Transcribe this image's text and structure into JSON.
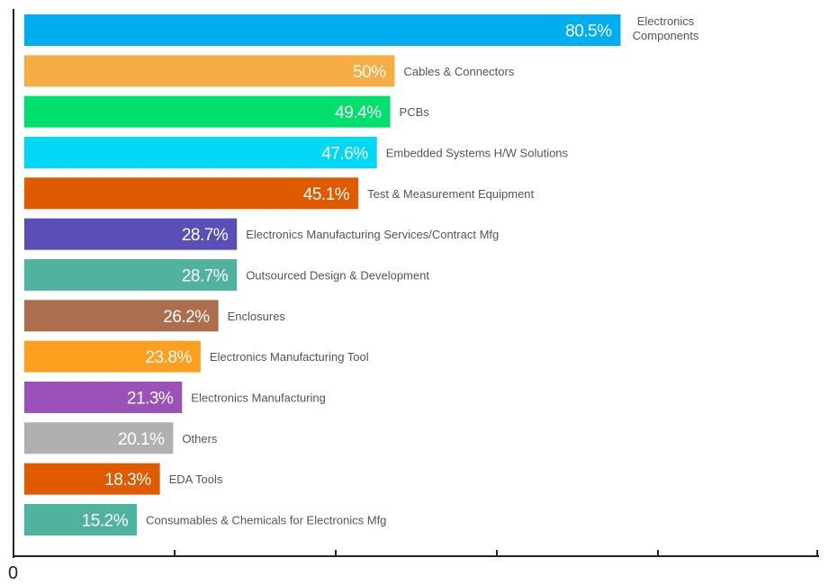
{
  "chart_data": {
    "type": "bar",
    "orientation": "horizontal",
    "categories": [
      "Electronics Components",
      "Cables & Connectors",
      "PCBs",
      "Embedded Systems H/W Solutions",
      "Test & Measurement Equipment",
      "Electronics Manufacturing Services/Contract Mfg",
      "Outsourced Design & Development",
      "Enclosures",
      "Electronics Manufacturing Tool",
      "Electronics Manufacturing",
      "Others",
      "EDA Tools",
      "Consumables & Chemicals for Electronics Mfg"
    ],
    "category_lines": [
      [
        "Electronics",
        "Components"
      ],
      [
        "Cables & Connectors"
      ],
      [
        "PCBs"
      ],
      [
        "Embedded Systems H/W Solutions"
      ],
      [
        "Test & Measurement Equipment"
      ],
      [
        "Electronics Manufacturing Services/Contract Mfg"
      ],
      [
        "Outsourced Design & Development"
      ],
      [
        "Enclosures"
      ],
      [
        "Electronics Manufacturing Tool"
      ],
      [
        "Electronics Manufacturing"
      ],
      [
        "Others"
      ],
      [
        "EDA Tools"
      ],
      [
        "Consumables & Chemicals for Electronics Mfg"
      ]
    ],
    "values": [
      80.5,
      50,
      49.4,
      47.6,
      45.1,
      28.7,
      28.7,
      26.2,
      23.8,
      21.3,
      20.1,
      18.3,
      15.2
    ],
    "value_labels": [
      "80.5%",
      "50%",
      "49.4%",
      "47.6%",
      "45.1%",
      "28.7%",
      "28.7%",
      "26.2%",
      "23.8%",
      "21.3%",
      "20.1%",
      "18.3%",
      "15.2%"
    ],
    "colors": [
      "#00aeef",
      "#f8ac44",
      "#00e06c",
      "#00d8f5",
      "#e05a00",
      "#5a4fb8",
      "#4fb3a0",
      "#ad6e4d",
      "#ff9f20",
      "#9a52b8",
      "#b0b0b0",
      "#e05a00",
      "#4fb3a0"
    ],
    "x_tick_labels": [
      "0"
    ],
    "x_ticks": [
      0,
      20,
      40,
      60,
      80,
      100
    ],
    "xlim": [
      0,
      100
    ],
    "value_format": "percent",
    "grid": false,
    "legend": "none",
    "title": "",
    "xlabel": "",
    "ylabel": ""
  }
}
